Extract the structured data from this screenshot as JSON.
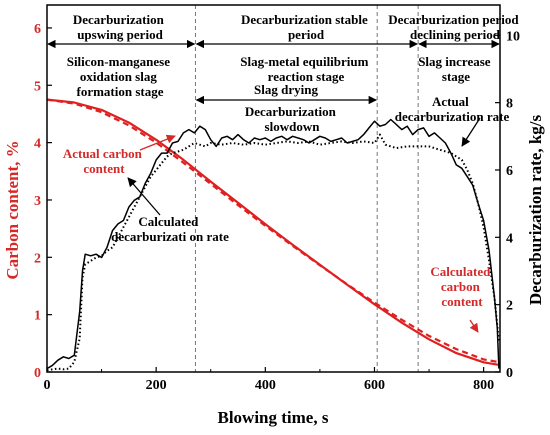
{
  "chart_data": {
    "type": "line",
    "xlabel": "Blowing time, s",
    "ylabel_left": "Carbon content, %",
    "ylabel_right": "Decarburization rate, kg/s",
    "xlim": [
      0,
      830
    ],
    "ylim_left": [
      0,
      6.4
    ],
    "ylim_right": [
      0,
      10.9
    ],
    "x_ticks": [
      0,
      200,
      400,
      600,
      800
    ],
    "y_left_ticks": [
      0,
      1,
      2,
      3,
      4,
      5,
      6
    ],
    "y_right_ticks": [
      0,
      2,
      4,
      6,
      8,
      10
    ],
    "period_boundaries": [
      272,
      605,
      680
    ],
    "periods": [
      {
        "label": "Decarburization upswing period",
        "x_from": 0,
        "x_to": 272
      },
      {
        "label": "Decarburization stable period",
        "x_from": 272,
        "x_to": 680
      },
      {
        "label": "Decarburization declining period",
        "x_from": 680,
        "x_to": 830
      }
    ],
    "stages": [
      {
        "label": "Silicon-manganese oxidation slag formation stage",
        "x_from": 0,
        "x_to": 272
      },
      {
        "label": "Slag-metal equilibrium reaction stage",
        "x_from": 272,
        "x_to": 680
      },
      {
        "label": "Slag increase stage",
        "x_from": 680,
        "x_to": 830
      },
      {
        "label": "Slag drying",
        "x_from": 272,
        "x_to": 605
      }
    ],
    "annotations": {
      "actual_carbon": "Actual carbon content",
      "calculated_carbon": "Calculated carbon content",
      "actual_rate": "Actual decarburization rate",
      "calculated_rate": "Calculated decarburizati on rate",
      "slowdown": "Decarburization slowdown"
    },
    "series": [
      {
        "name": "Actual carbon content",
        "axis": "left",
        "style": "solid",
        "color": "#e02020",
        "x": [
          0,
          50,
          100,
          150,
          200,
          250,
          300,
          350,
          400,
          450,
          500,
          550,
          600,
          650,
          700,
          750,
          800,
          830
        ],
        "y": [
          4.75,
          4.7,
          4.57,
          4.35,
          4.05,
          3.7,
          3.32,
          2.95,
          2.58,
          2.22,
          1.87,
          1.52,
          1.18,
          0.86,
          0.57,
          0.33,
          0.17,
          0.12
        ]
      },
      {
        "name": "Calculated carbon content",
        "axis": "left",
        "style": "dashed",
        "color": "#e02020",
        "x": [
          0,
          50,
          100,
          150,
          200,
          250,
          300,
          350,
          400,
          450,
          500,
          550,
          600,
          650,
          700,
          750,
          800,
          830
        ],
        "y": [
          4.75,
          4.68,
          4.53,
          4.3,
          4.0,
          3.65,
          3.28,
          2.91,
          2.55,
          2.2,
          1.86,
          1.53,
          1.21,
          0.91,
          0.63,
          0.4,
          0.22,
          0.17
        ]
      },
      {
        "name": "Actual decarburization rate",
        "axis": "right",
        "style": "solid",
        "color": "#000000",
        "x": [
          0,
          10,
          20,
          30,
          40,
          50,
          60,
          65,
          70,
          80,
          90,
          100,
          110,
          120,
          130,
          140,
          150,
          160,
          170,
          180,
          190,
          200,
          210,
          220,
          230,
          240,
          250,
          260,
          270,
          280,
          290,
          300,
          310,
          320,
          330,
          340,
          350,
          360,
          370,
          380,
          390,
          400,
          410,
          420,
          430,
          440,
          450,
          460,
          470,
          480,
          490,
          500,
          510,
          520,
          530,
          540,
          550,
          560,
          570,
          580,
          590,
          600,
          610,
          620,
          630,
          640,
          650,
          660,
          670,
          680,
          690,
          700,
          710,
          720,
          730,
          740,
          750,
          760,
          770,
          780,
          790,
          800,
          810,
          820,
          825,
          828
        ],
        "y": [
          0.1,
          0.2,
          0.35,
          0.45,
          0.4,
          0.5,
          1.8,
          3.0,
          3.5,
          3.45,
          3.5,
          3.4,
          3.7,
          4.2,
          4.4,
          4.5,
          4.9,
          5.1,
          5.2,
          5.6,
          5.9,
          6.3,
          6.5,
          6.5,
          6.8,
          6.85,
          7.1,
          7.2,
          7.1,
          7.3,
          7.2,
          6.9,
          6.7,
          6.95,
          7.0,
          6.9,
          7.05,
          6.9,
          6.8,
          6.95,
          6.9,
          6.95,
          6.85,
          6.95,
          7.0,
          6.9,
          7.0,
          6.95,
          6.9,
          6.8,
          6.9,
          7.0,
          6.95,
          6.85,
          6.9,
          6.95,
          6.8,
          6.85,
          6.9,
          7.05,
          7.25,
          7.45,
          7.3,
          7.35,
          7.5,
          7.35,
          7.2,
          7.3,
          7.05,
          7.2,
          7.25,
          7.0,
          7.1,
          6.95,
          6.8,
          6.5,
          6.15,
          6.05,
          5.8,
          5.55,
          5.0,
          4.5,
          3.6,
          2.2,
          1.3,
          0.1
        ]
      },
      {
        "name": "Calculated decarburization rate",
        "axis": "right",
        "style": "dotted",
        "color": "#000000",
        "x": [
          0,
          10,
          20,
          30,
          40,
          50,
          60,
          65,
          70,
          80,
          90,
          100,
          110,
          120,
          130,
          140,
          150,
          160,
          170,
          180,
          190,
          200,
          210,
          220,
          230,
          240,
          250,
          260,
          270,
          280,
          290,
          300,
          320,
          340,
          360,
          380,
          400,
          420,
          440,
          460,
          480,
          500,
          520,
          540,
          560,
          580,
          600,
          610,
          620,
          640,
          660,
          680,
          700,
          720,
          740,
          750,
          760,
          770,
          780,
          790,
          800,
          810,
          820,
          828
        ],
        "y": [
          0.05,
          0.08,
          0.1,
          0.08,
          0.1,
          0.3,
          1.0,
          2.8,
          3.2,
          3.3,
          3.4,
          3.45,
          3.6,
          3.7,
          4.0,
          4.3,
          4.6,
          4.9,
          5.2,
          5.5,
          5.8,
          6.0,
          6.2,
          6.4,
          6.5,
          6.55,
          6.6,
          6.7,
          6.8,
          6.75,
          6.7,
          6.8,
          6.75,
          6.8,
          6.75,
          6.8,
          6.75,
          6.8,
          6.85,
          6.8,
          6.85,
          6.75,
          6.8,
          6.85,
          6.8,
          6.85,
          6.8,
          7.05,
          6.75,
          6.65,
          6.7,
          6.7,
          6.7,
          6.6,
          6.5,
          6.4,
          6.3,
          6.0,
          5.6,
          5.0,
          4.3,
          3.3,
          2.2,
          0.9
        ]
      }
    ]
  }
}
